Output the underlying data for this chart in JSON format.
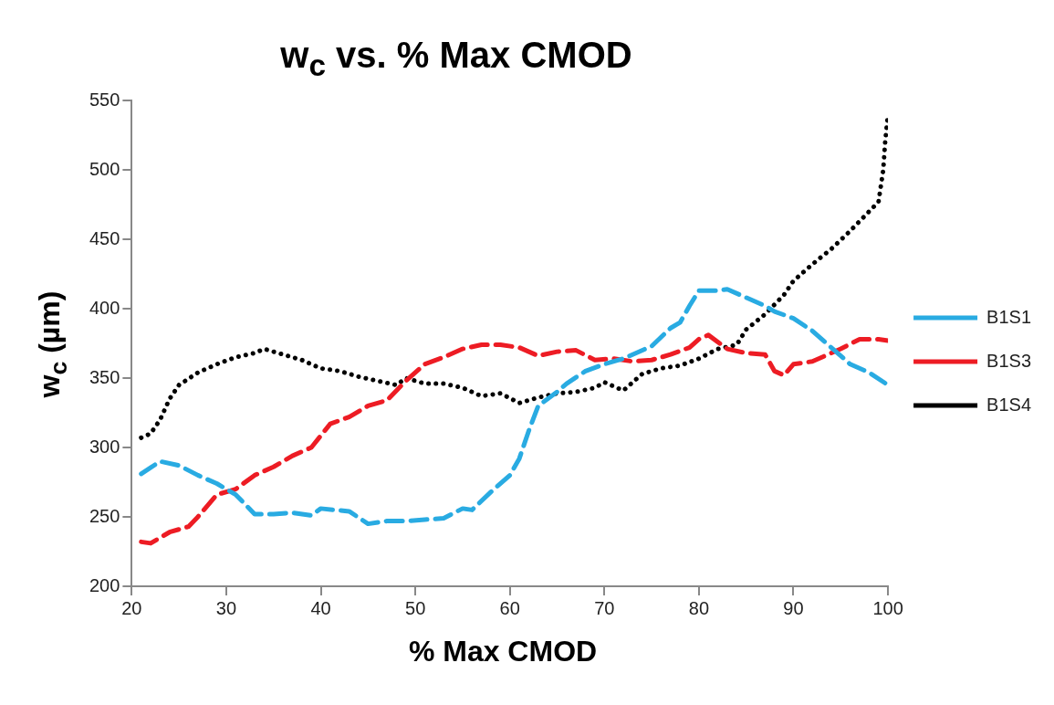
{
  "chart_data": {
    "type": "line",
    "title": "w$_{c}$ vs. % Max CMOD",
    "xlabel": "% Max CMOD",
    "ylabel": "w$_{c}$ (µm)",
    "xlim": [
      20,
      100
    ],
    "xticks": [
      20,
      30,
      40,
      50,
      60,
      70,
      80,
      90,
      100
    ],
    "ylim": [
      200,
      550
    ],
    "yticks": [
      200,
      250,
      300,
      350,
      400,
      450,
      500,
      550
    ],
    "grid": false,
    "legend": "right",
    "marker": "none",
    "series": [
      {
        "name": "B1S1",
        "color": "#29abe2",
        "line_style": "dashed",
        "x": [
          21,
          23,
          25,
          27,
          29,
          31,
          33,
          35,
          37,
          39,
          40,
          43,
          45,
          47,
          49,
          51,
          53,
          55,
          56,
          58,
          60,
          61,
          62,
          63,
          65,
          66,
          68,
          70,
          72,
          75,
          77,
          78,
          79,
          80,
          82,
          83,
          85,
          87,
          88,
          90,
          92,
          94,
          96,
          98,
          100
        ],
        "values": [
          281,
          290,
          287,
          280,
          274,
          266,
          252,
          252,
          253,
          251,
          256,
          254,
          245,
          247,
          247,
          248,
          249,
          256,
          255,
          268,
          280,
          292,
          312,
          330,
          340,
          346,
          355,
          360,
          364,
          373,
          386,
          390,
          402,
          413,
          413,
          414,
          408,
          402,
          398,
          393,
          384,
          372,
          360,
          354,
          345
        ]
      },
      {
        "name": "B1S3",
        "color": "#ed1c24",
        "line_style": "dashed",
        "x": [
          21,
          22,
          24,
          26,
          27,
          29,
          31,
          33,
          35,
          37,
          39,
          41,
          43,
          45,
          47,
          49,
          51,
          53,
          55,
          57,
          59,
          61,
          63,
          65,
          67,
          69,
          71,
          73,
          75,
          77,
          79,
          80,
          81,
          83,
          85,
          87,
          88,
          89,
          90,
          92,
          94,
          95,
          97,
          99,
          100
        ],
        "values": [
          232,
          231,
          239,
          243,
          250,
          266,
          270,
          280,
          286,
          294,
          300,
          317,
          322,
          330,
          334,
          348,
          360,
          365,
          371,
          374,
          374,
          372,
          366,
          369,
          370,
          363,
          364,
          362,
          363,
          367,
          372,
          378,
          381,
          371,
          368,
          367,
          355,
          352,
          360,
          362,
          368,
          371,
          378,
          378,
          377
        ]
      },
      {
        "name": "B1S4",
        "color": "#000000",
        "line_style": "dotted",
        "x": [
          21,
          22,
          23,
          24,
          25,
          27,
          29,
          31,
          33,
          34,
          36,
          38,
          40,
          42,
          44,
          46,
          48,
          49,
          51,
          53,
          55,
          57,
          59,
          61,
          63,
          65,
          67,
          69,
          70,
          72,
          74,
          76,
          78,
          80,
          82,
          84,
          85,
          87,
          89,
          90,
          92,
          94,
          96,
          98,
          99,
          99.5,
          99.7,
          100
        ],
        "values": [
          307,
          310,
          320,
          335,
          345,
          354,
          360,
          365,
          368,
          371,
          367,
          363,
          357,
          355,
          351,
          348,
          345,
          350,
          346,
          346,
          343,
          337,
          339,
          332,
          336,
          339,
          340,
          343,
          347,
          341,
          353,
          357,
          359,
          364,
          371,
          374,
          385,
          396,
          410,
          420,
          432,
          443,
          456,
          470,
          477,
          500,
          520,
          540
        ]
      }
    ]
  }
}
